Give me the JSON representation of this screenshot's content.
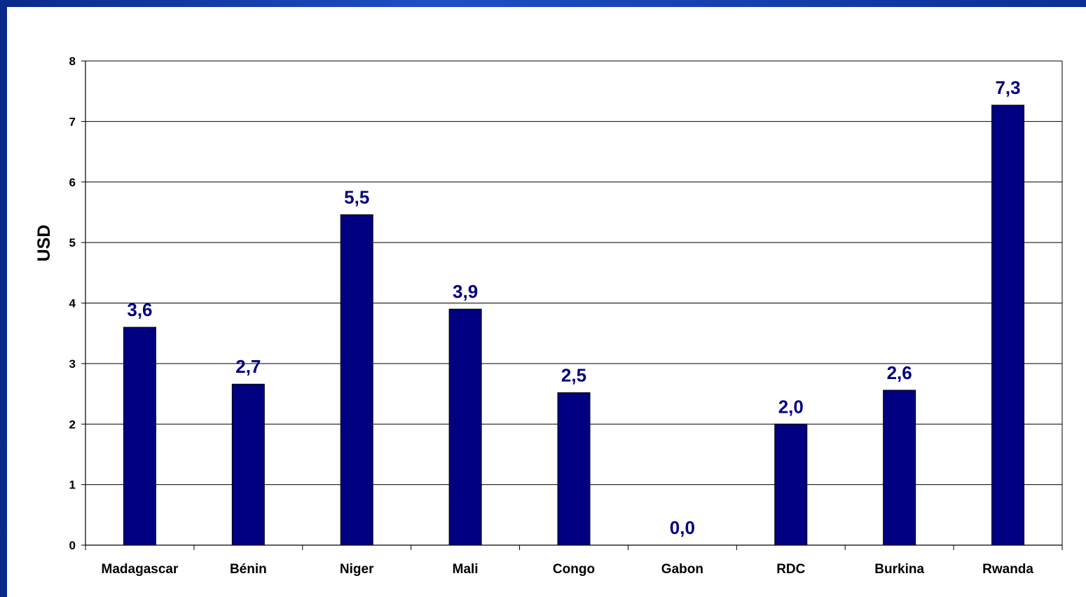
{
  "colors": {
    "bar": "#000080",
    "data_label": "#000080",
    "frame": "#1a47b8",
    "plot_background": "#ffffff",
    "gridline": "#000000"
  },
  "chart_data": {
    "type": "bar",
    "title": "",
    "xlabel": "",
    "ylabel": "USD",
    "categories": [
      "Madagascar",
      "Bénin",
      "Niger",
      "Mali",
      "Congo",
      "Gabon",
      "RDC",
      "Burkina",
      "Rwanda"
    ],
    "values": [
      3.6,
      2.66,
      5.46,
      3.9,
      2.52,
      0.0,
      2.0,
      2.56,
      7.27
    ],
    "data_labels": [
      "3,6",
      "2,7",
      "5,5",
      "3,9",
      "2,5",
      "0,0",
      "2,0",
      "2,6",
      "7,3"
    ],
    "ylim": [
      0,
      8
    ],
    "yticks": [
      "0",
      "1",
      "2",
      "3",
      "4",
      "5",
      "6",
      "7",
      "8"
    ],
    "grid": true,
    "legend": "none"
  }
}
